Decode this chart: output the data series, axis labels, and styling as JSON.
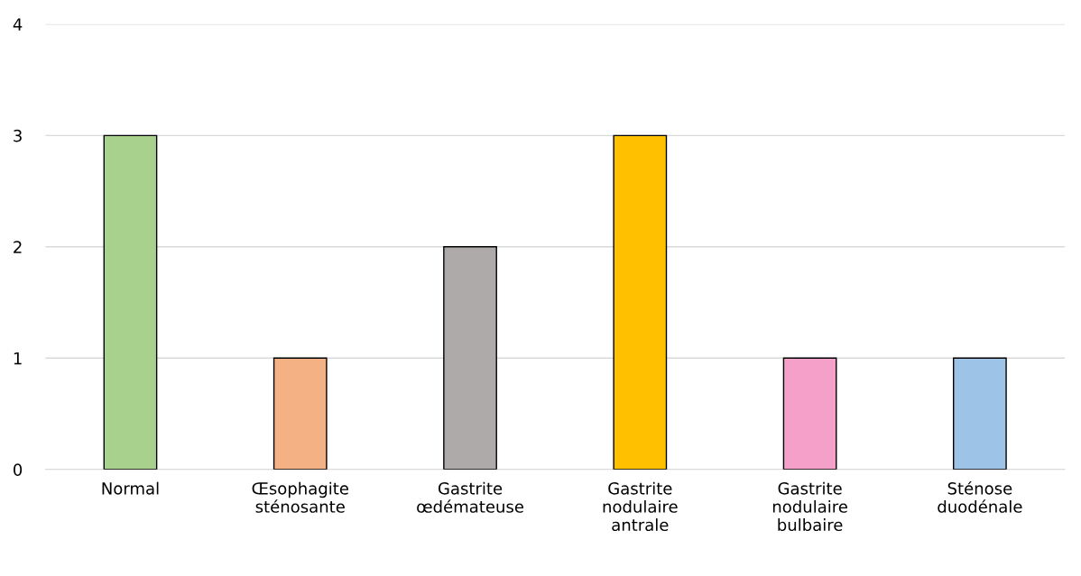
{
  "chart_data": {
    "type": "bar",
    "categories": [
      "Normal",
      "Œsophagite sténosante",
      "Gastrite œdémateuse",
      "Gastrite nodulaire antrale",
      "Gastrite nodulaire bulbaire",
      "Sténose duodénale"
    ],
    "values": [
      3,
      1,
      2,
      3,
      1,
      1
    ],
    "colors": [
      "#a9d18e",
      "#f4b183",
      "#aeaaaa",
      "#ffc000",
      "#f4a0c8",
      "#9dc3e6"
    ],
    "ylim": [
      0,
      4
    ],
    "yticks": [
      0,
      1,
      2,
      3,
      4
    ],
    "grid": "y"
  }
}
